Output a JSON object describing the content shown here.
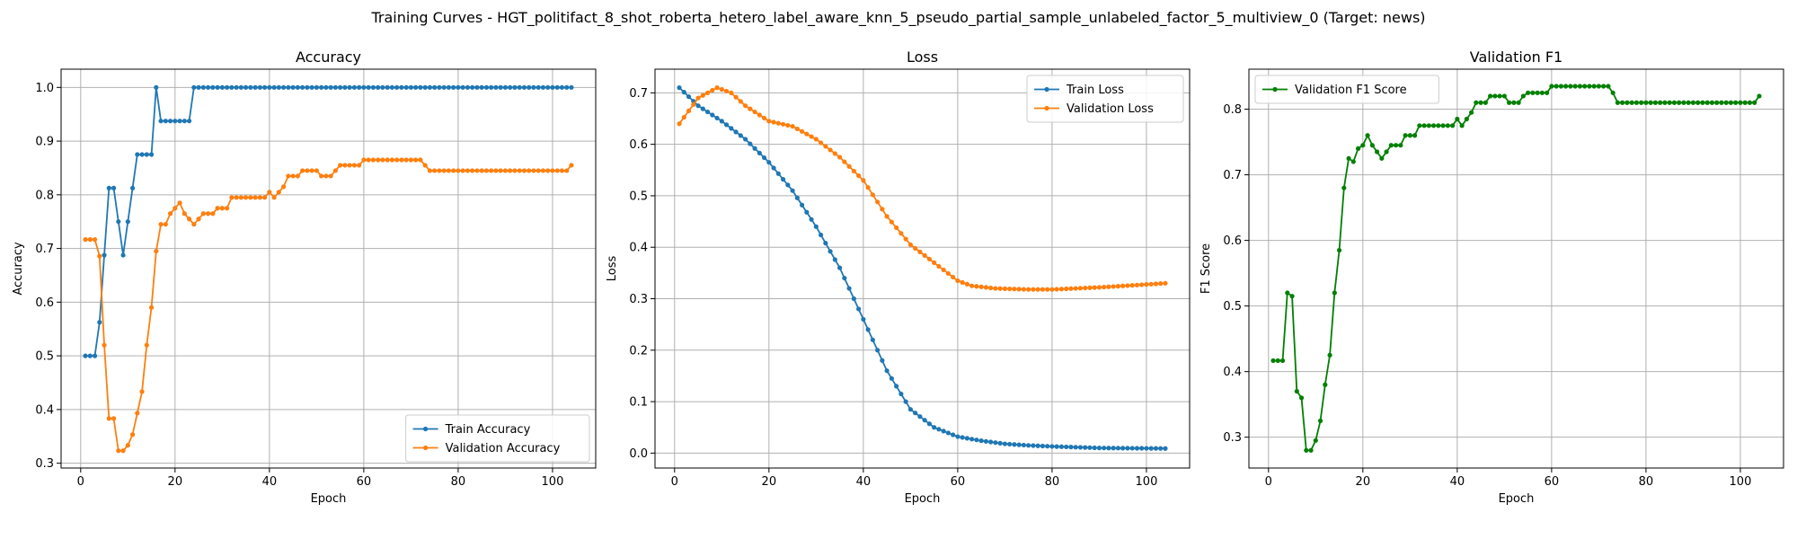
{
  "suptitle": "Training Curves - HGT_politifact_8_shot_roberta_hetero_label_aware_knn_5_pseudo_partial_sample_unlabeled_factor_5_multiview_0 (Target: news)",
  "colors": {
    "blue": "#1f77b4",
    "orange": "#ff7f0e",
    "green": "#008000",
    "grid": "#b0b0b0"
  },
  "chart_data": [
    {
      "type": "line",
      "title": "Accuracy",
      "xlabel": "Epoch",
      "ylabel": "Accuracy",
      "xlim": [
        -4.15,
        109.15
      ],
      "ylim": [
        0.291,
        1.034
      ],
      "xticks": [
        0,
        20,
        40,
        60,
        80,
        100
      ],
      "yticks": [
        0.3,
        0.4,
        0.5,
        0.6,
        0.7,
        0.8,
        0.9,
        1.0
      ],
      "ytick_labels": [
        "0.3",
        "0.4",
        "0.5",
        "0.6",
        "0.7",
        "0.8",
        "0.9",
        "1.0"
      ],
      "grid": true,
      "legend_loc": "lower-right",
      "series": [
        {
          "name": "Train Accuracy",
          "color": "blue",
          "runs": [
            [
              1,
              3,
              0.5
            ],
            [
              4,
              4,
              0.5625
            ],
            [
              5,
              5,
              0.6875
            ],
            [
              6,
              7,
              0.8125
            ],
            [
              8,
              8,
              0.75
            ],
            [
              9,
              9,
              0.6875
            ],
            [
              10,
              10,
              0.75
            ],
            [
              11,
              11,
              0.8125
            ],
            [
              12,
              15,
              0.875
            ],
            [
              16,
              16,
              1.0
            ],
            [
              17,
              23,
              0.9375
            ],
            [
              24,
              104,
              1.0
            ]
          ]
        },
        {
          "name": "Validation Accuracy",
          "color": "orange",
          "runs": [
            [
              1,
              3,
              0.7167
            ],
            [
              4,
              4,
              0.6857
            ],
            [
              5,
              5,
              0.52
            ],
            [
              6,
              7,
              0.3833
            ],
            [
              8,
              9,
              0.3233
            ],
            [
              10,
              10,
              0.3333
            ],
            [
              11,
              11,
              0.3533
            ],
            [
              12,
              12,
              0.3933
            ],
            [
              13,
              13,
              0.4333
            ],
            [
              14,
              14,
              0.52
            ],
            [
              15,
              15,
              0.59
            ],
            [
              16,
              16,
              0.695
            ],
            [
              17,
              18,
              0.745
            ],
            [
              19,
              19,
              0.765
            ],
            [
              20,
              20,
              0.775
            ],
            [
              21,
              21,
              0.785
            ],
            [
              22,
              22,
              0.765
            ],
            [
              23,
              23,
              0.755
            ],
            [
              24,
              24,
              0.745
            ],
            [
              25,
              25,
              0.755
            ],
            [
              26,
              28,
              0.765
            ],
            [
              29,
              31,
              0.775
            ],
            [
              32,
              39,
              0.795
            ],
            [
              40,
              40,
              0.805
            ],
            [
              41,
              41,
              0.795
            ],
            [
              42,
              42,
              0.805
            ],
            [
              43,
              43,
              0.815
            ],
            [
              44,
              46,
              0.835
            ],
            [
              47,
              50,
              0.845
            ],
            [
              51,
              53,
              0.835
            ],
            [
              54,
              54,
              0.845
            ],
            [
              55,
              59,
              0.855
            ],
            [
              60,
              72,
              0.865
            ],
            [
              73,
              73,
              0.855
            ],
            [
              74,
              103,
              0.845
            ],
            [
              104,
              104,
              0.855
            ]
          ]
        }
      ]
    },
    {
      "type": "line",
      "title": "Loss",
      "xlabel": "Epoch",
      "ylabel": "Loss",
      "xlim": [
        -4.15,
        109.15
      ],
      "ylim": [
        -0.029,
        0.746
      ],
      "xticks": [
        0,
        20,
        40,
        60,
        80,
        100
      ],
      "yticks": [
        0.0,
        0.1,
        0.2,
        0.3,
        0.4,
        0.5,
        0.6,
        0.7
      ],
      "ytick_labels": [
        "0.0",
        "0.1",
        "0.2",
        "0.3",
        "0.4",
        "0.5",
        "0.6",
        "0.7"
      ],
      "grid": true,
      "legend_loc": "upper-right",
      "series": [
        {
          "name": "Train Loss",
          "color": "blue",
          "keys": [
            [
              1,
              0.71
            ],
            [
              5,
              0.675
            ],
            [
              10,
              0.645
            ],
            [
              15,
              0.61
            ],
            [
              20,
              0.565
            ],
            [
              25,
              0.51
            ],
            [
              30,
              0.44
            ],
            [
              35,
              0.36
            ],
            [
              40,
              0.26
            ],
            [
              45,
              0.16
            ],
            [
              50,
              0.085
            ],
            [
              55,
              0.05
            ],
            [
              60,
              0.032
            ],
            [
              65,
              0.024
            ],
            [
              70,
              0.018
            ],
            [
              75,
              0.015
            ],
            [
              80,
              0.013
            ],
            [
              90,
              0.01
            ],
            [
              104,
              0.009
            ]
          ]
        },
        {
          "name": "Validation Loss",
          "color": "orange",
          "keys": [
            [
              1,
              0.64
            ],
            [
              5,
              0.69
            ],
            [
              9,
              0.71
            ],
            [
              12,
              0.7
            ],
            [
              15,
              0.675
            ],
            [
              20,
              0.645
            ],
            [
              25,
              0.635
            ],
            [
              30,
              0.61
            ],
            [
              35,
              0.575
            ],
            [
              40,
              0.53
            ],
            [
              45,
              0.46
            ],
            [
              50,
              0.405
            ],
            [
              55,
              0.37
            ],
            [
              60,
              0.335
            ],
            [
              63,
              0.325
            ],
            [
              68,
              0.32
            ],
            [
              75,
              0.318
            ],
            [
              80,
              0.318
            ],
            [
              90,
              0.322
            ],
            [
              104,
              0.33
            ]
          ]
        }
      ]
    },
    {
      "type": "line",
      "title": "Validation F1",
      "xlabel": "Epoch",
      "ylabel": "F1 Score",
      "xlim": [
        -4.15,
        109.15
      ],
      "ylim": [
        0.253,
        0.861
      ],
      "xticks": [
        0,
        20,
        40,
        60,
        80,
        100
      ],
      "yticks": [
        0.3,
        0.4,
        0.5,
        0.6,
        0.7,
        0.8
      ],
      "ytick_labels": [
        "0.3",
        "0.4",
        "0.5",
        "0.6",
        "0.7",
        "0.8"
      ],
      "grid": true,
      "legend_loc": "upper-left",
      "series": [
        {
          "name": "Validation F1 Score",
          "color": "green",
          "runs": [
            [
              1,
              3,
              0.4167
            ],
            [
              4,
              4,
              0.52
            ],
            [
              5,
              5,
              0.515
            ],
            [
              6,
              6,
              0.37
            ],
            [
              7,
              7,
              0.36
            ],
            [
              8,
              9,
              0.28
            ],
            [
              10,
              10,
              0.295
            ],
            [
              11,
              11,
              0.325
            ],
            [
              12,
              12,
              0.38
            ],
            [
              13,
              13,
              0.425
            ],
            [
              14,
              14,
              0.52
            ],
            [
              15,
              15,
              0.585
            ],
            [
              16,
              16,
              0.68
            ],
            [
              17,
              17,
              0.725
            ],
            [
              18,
              18,
              0.72
            ],
            [
              19,
              19,
              0.74
            ],
            [
              20,
              20,
              0.745
            ],
            [
              21,
              21,
              0.76
            ],
            [
              22,
              22,
              0.745
            ],
            [
              23,
              23,
              0.735
            ],
            [
              24,
              24,
              0.725
            ],
            [
              25,
              25,
              0.735
            ],
            [
              26,
              28,
              0.745
            ],
            [
              29,
              31,
              0.76
            ],
            [
              32,
              39,
              0.775
            ],
            [
              40,
              40,
              0.785
            ],
            [
              41,
              41,
              0.775
            ],
            [
              42,
              42,
              0.785
            ],
            [
              43,
              43,
              0.795
            ],
            [
              44,
              46,
              0.81
            ],
            [
              47,
              50,
              0.82
            ],
            [
              51,
              53,
              0.81
            ],
            [
              54,
              54,
              0.82
            ],
            [
              55,
              59,
              0.825
            ],
            [
              60,
              72,
              0.835
            ],
            [
              73,
              73,
              0.825
            ],
            [
              74,
              103,
              0.81
            ],
            [
              104,
              104,
              0.82
            ]
          ]
        }
      ]
    }
  ]
}
